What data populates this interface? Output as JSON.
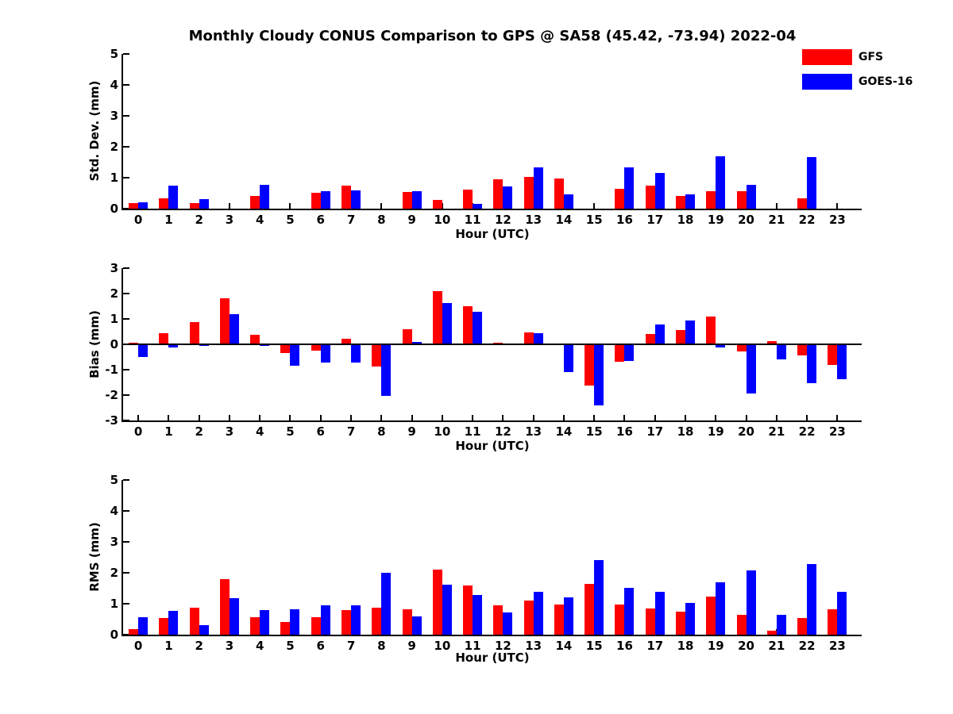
{
  "title": "Monthly Cloudy CONUS Comparison to GPS @ SA58 (45.42, -73.94) 2022-04",
  "legend": {
    "items": [
      {
        "label": "GFS",
        "color": "#ff0000"
      },
      {
        "label": "GOES-16",
        "color": "#0000ff"
      }
    ]
  },
  "chart_data": [
    {
      "type": "bar",
      "ylabel": "Std. Dev. (mm)",
      "xlabel": "Hour (UTC)",
      "ylim": [
        0,
        5
      ],
      "yticks": [
        0,
        1,
        2,
        3,
        4,
        5
      ],
      "grid": false,
      "legend_position": "top-right-outside",
      "categories": [
        0,
        1,
        2,
        3,
        4,
        5,
        6,
        7,
        8,
        9,
        10,
        11,
        12,
        13,
        14,
        15,
        16,
        17,
        18,
        19,
        20,
        21,
        22,
        23
      ],
      "series": [
        {
          "name": "GFS",
          "color": "#ff0000",
          "values": [
            0.17,
            0.33,
            0.19,
            0,
            0.42,
            0,
            0.52,
            0.75,
            0,
            0.55,
            0.28,
            0.62,
            0.95,
            1.02,
            0.97,
            0,
            0.65,
            0.75,
            0.41,
            0.56,
            0.57,
            0,
            0.33,
            0
          ]
        },
        {
          "name": "GOES-16",
          "color": "#0000ff",
          "values": [
            0.2,
            0.74,
            0.3,
            0,
            0.78,
            0,
            0.57,
            0.6,
            0,
            0.56,
            0,
            0.15,
            0.73,
            1.34,
            0.46,
            0,
            1.33,
            1.15,
            0.46,
            1.7,
            0.77,
            0,
            1.66,
            0
          ]
        }
      ]
    },
    {
      "type": "bar",
      "ylabel": "Bias (mm)",
      "xlabel": "Hour (UTC)",
      "ylim": [
        -3,
        3
      ],
      "yticks": [
        -3,
        -2,
        -1,
        0,
        1,
        2,
        3
      ],
      "grid": false,
      "categories": [
        0,
        1,
        2,
        3,
        4,
        5,
        6,
        7,
        8,
        9,
        10,
        11,
        12,
        13,
        14,
        15,
        16,
        17,
        18,
        19,
        20,
        21,
        22,
        23
      ],
      "series": [
        {
          "name": "GFS",
          "color": "#ff0000",
          "values": [
            0.07,
            0.45,
            0.88,
            1.8,
            0.38,
            -0.34,
            -0.25,
            0.23,
            -0.87,
            0.6,
            2.08,
            1.5,
            0.06,
            0.47,
            0,
            -1.62,
            -0.7,
            0.4,
            0.57,
            1.08,
            -0.27,
            0.13,
            -0.43,
            -0.82
          ]
        },
        {
          "name": "GOES-16",
          "color": "#0000ff",
          "values": [
            -0.5,
            -0.12,
            -0.05,
            1.18,
            -0.07,
            -0.83,
            -0.73,
            -0.73,
            -2.02,
            0.1,
            1.62,
            1.28,
            0,
            0.45,
            -1.1,
            -2.4,
            -0.66,
            0.78,
            0.93,
            -0.14,
            -1.95,
            -0.59,
            -1.53,
            -1.36
          ]
        }
      ]
    },
    {
      "type": "bar",
      "ylabel": "RMS (mm)",
      "xlabel": "Hour (UTC)",
      "ylim": [
        0,
        5
      ],
      "yticks": [
        0,
        1,
        2,
        3,
        4,
        5
      ],
      "grid": false,
      "categories": [
        0,
        1,
        2,
        3,
        4,
        5,
        6,
        7,
        8,
        9,
        10,
        11,
        12,
        13,
        14,
        15,
        16,
        17,
        18,
        19,
        20,
        21,
        22,
        23
      ],
      "series": [
        {
          "name": "GFS",
          "color": "#ff0000",
          "values": [
            0.17,
            0.54,
            0.88,
            1.8,
            0.57,
            0.4,
            0.57,
            0.8,
            0.88,
            0.83,
            2.1,
            1.6,
            0.96,
            1.1,
            0.97,
            1.64,
            0.97,
            0.84,
            0.74,
            1.22,
            0.65,
            0.12,
            0.54,
            0.82
          ]
        },
        {
          "name": "GOES-16",
          "color": "#0000ff",
          "values": [
            0.56,
            0.78,
            0.32,
            1.19,
            0.8,
            0.83,
            0.95,
            0.95,
            2.0,
            0.59,
            1.61,
            1.28,
            0.71,
            1.38,
            1.2,
            2.4,
            1.51,
            1.38,
            1.03,
            1.68,
            2.07,
            0.64,
            2.27,
            1.39
          ]
        }
      ]
    }
  ]
}
